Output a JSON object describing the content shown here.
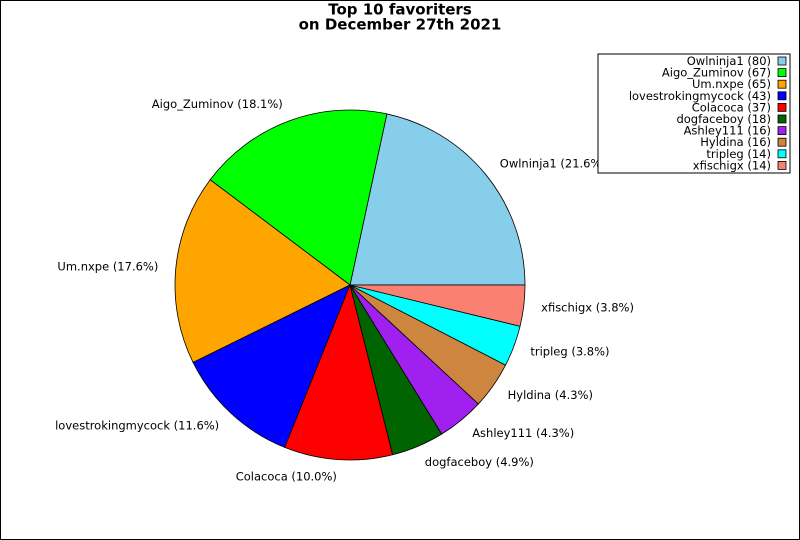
{
  "chart_data": {
    "type": "pie",
    "title": "Top 10 favoriters",
    "subtitle": "on December 27th 2021",
    "categories": [
      "Owlninja1 (80)",
      "Aigo_Zuminov (67)",
      "Um.nxpe (65)",
      "lovestrokingmycock (43)",
      "Colacoca (37)",
      "dogfaceboy (18)",
      "Ashley111 (16)",
      "Hyldina (16)",
      "tripleg (14)",
      "xfischigx (14)"
    ],
    "values": [
      80,
      67,
      65,
      43,
      37,
      18,
      16,
      16,
      14,
      14
    ],
    "slice_labels": [
      "Owlninja1 (21.6%)",
      "Aigo_Zuminov (18.1%)",
      "Um.nxpe (17.6%)",
      "lovestrokingmycock (11.6%)",
      "Colacoca (10.0%)",
      "dogfaceboy (4.9%)",
      "Ashley111 (4.3%)",
      "Hyldina (4.3%)",
      "tripleg (3.8%)",
      "xfischigx (3.8%)"
    ],
    "colors": [
      "#87ceeb",
      "#00ff00",
      "#ffa500",
      "#0000ff",
      "#ff0000",
      "#006400",
      "#a020f0",
      "#cd853f",
      "#00ffff",
      "#fa8072"
    ],
    "legend": "upper right"
  }
}
